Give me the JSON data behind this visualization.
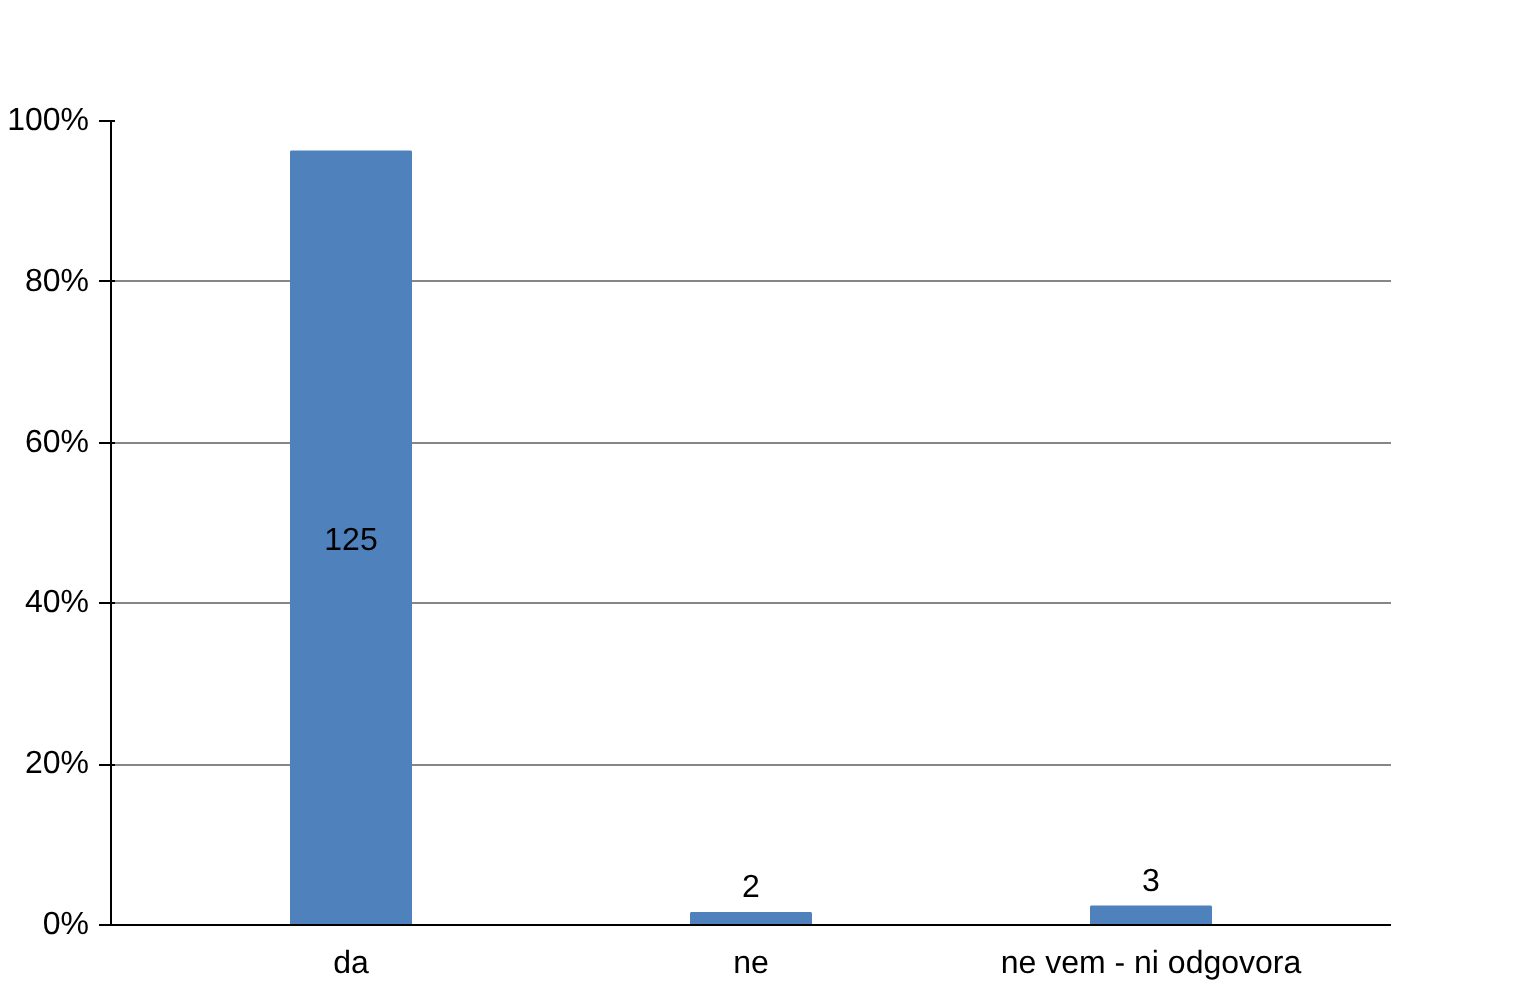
{
  "chart_data": {
    "type": "bar",
    "categories": [
      "da",
      "ne",
      "ne vem - ni odgovora"
    ],
    "values": [
      96.2,
      1.5,
      2.3
    ],
    "annotations": [
      "125",
      "2",
      "3"
    ],
    "color": "#4f81bd",
    "ylim": [
      0,
      100
    ],
    "yticks": [
      {
        "value": 0,
        "label": "0%"
      },
      {
        "value": 20,
        "label": "20%"
      },
      {
        "value": 40,
        "label": "40%"
      },
      {
        "value": 60,
        "label": "60%"
      },
      {
        "value": 80,
        "label": "80%"
      },
      {
        "value": 100,
        "label": "100%"
      }
    ],
    "grid": "y"
  }
}
